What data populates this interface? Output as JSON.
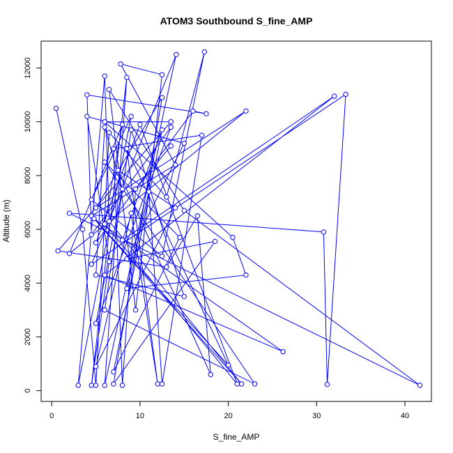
{
  "chart_data": {
    "type": "line",
    "title": "ATOM3 Southbound S_fine_AMP",
    "xlabel": "S_fine_AMP",
    "ylabel": "Altitude (m)",
    "xlim": [
      -1.2,
      43.0
    ],
    "ylim": [
      -400,
      13000
    ],
    "xticks": [
      0,
      10,
      20,
      30,
      40
    ],
    "yticks": [
      0,
      2000,
      4000,
      6000,
      8000,
      10000,
      12000
    ],
    "grid": false,
    "legend": "none",
    "marker": "open-circle",
    "color": "#0000ff",
    "series": [
      {
        "values": [
          [
            0.5,
            10500
          ],
          [
            3.5,
            6000
          ],
          [
            5.0,
            200
          ],
          [
            6.5,
            9600
          ],
          [
            13.0,
            7200
          ],
          [
            17.3,
            12600
          ],
          [
            12.5,
            5000
          ],
          [
            4.5,
            7100
          ],
          [
            9.0,
            10200
          ],
          [
            3.0,
            200
          ],
          [
            6.0,
            11700
          ],
          [
            6.5,
            6300
          ],
          [
            21.5,
            250
          ],
          [
            4.5,
            6500
          ],
          [
            14.0,
            8400
          ],
          [
            7.8,
            12150
          ],
          [
            12.5,
            11750
          ],
          [
            9.5,
            3000
          ],
          [
            6.5,
            11200
          ],
          [
            15.0,
            6700
          ],
          [
            41.7,
            200
          ],
          [
            2.0,
            6600
          ],
          [
            30.8,
            5900
          ],
          [
            31.2,
            230
          ],
          [
            33.3,
            11020
          ],
          [
            4.5,
            4700
          ],
          [
            14.1,
            12500
          ],
          [
            6.0,
            200
          ],
          [
            8.5,
            11650
          ],
          [
            4.5,
            200
          ],
          [
            6.5,
            4800
          ],
          [
            4.0,
            10200
          ],
          [
            15.0,
            9200
          ],
          [
            8.5,
            4900
          ],
          [
            18.5,
            5550
          ],
          [
            7.0,
            250
          ],
          [
            12.5,
            10900
          ],
          [
            5.0,
            6800
          ],
          [
            22.0,
            10400
          ],
          [
            2.0,
            5100
          ],
          [
            8.0,
            9900
          ],
          [
            6.0,
            6200
          ],
          [
            21.0,
            250
          ],
          [
            10.0,
            9900
          ],
          [
            5.0,
            5500
          ],
          [
            16.0,
            10400
          ],
          [
            17.5,
            10300
          ],
          [
            4.0,
            11000
          ],
          [
            4.5,
            5800
          ],
          [
            13.5,
            9800
          ],
          [
            5.0,
            2500
          ],
          [
            8.0,
            7500
          ],
          [
            6.0,
            9800
          ],
          [
            5.0,
            4300
          ],
          [
            15.0,
            3500
          ],
          [
            9.0,
            9700
          ],
          [
            6.0,
            3000
          ],
          [
            23.0,
            250
          ],
          [
            6.0,
            8500
          ],
          [
            14.5,
            5700
          ],
          [
            7.0,
            700
          ],
          [
            12.5,
            9700
          ],
          [
            8.0,
            5600
          ],
          [
            32.0,
            10950
          ],
          [
            6.0,
            4300
          ],
          [
            26.2,
            1450
          ],
          [
            4.8,
            6400
          ],
          [
            20.0,
            950
          ],
          [
            8.5,
            9000
          ],
          [
            12.0,
            250
          ],
          [
            9.0,
            6600
          ],
          [
            5.0,
            900
          ],
          [
            14.0,
            6800
          ],
          [
            7.5,
            8200
          ],
          [
            18.0,
            600
          ],
          [
            16.5,
            6500
          ],
          [
            13.0,
            4600
          ],
          [
            0.7,
            5200
          ],
          [
            13.5,
            10000
          ],
          [
            6.0,
            10000
          ],
          [
            20.5,
            5700
          ],
          [
            22.0,
            4300
          ],
          [
            8.5,
            3800
          ],
          [
            11.0,
            7400
          ],
          [
            12.5,
            250
          ],
          [
            17.0,
            9500
          ],
          [
            7.0,
            9000
          ],
          [
            8.0,
            200
          ],
          [
            9.5,
            7500
          ],
          [
            13.5,
            9100
          ]
        ]
      }
    ]
  }
}
